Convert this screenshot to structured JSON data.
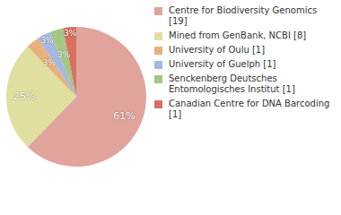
{
  "chart_data": {
    "type": "pie",
    "categories": [
      "Centre for Biodiversity Genomics [19]",
      "Mined from GenBank, NCBI [8]",
      "University of Oulu [1]",
      "University of Guelph [1]",
      "Senckenberg Deutsches Entomologisches Institut [1]",
      "Canadian Centre for DNA Barcoding [1]"
    ],
    "values": [
      61,
      25,
      3,
      3,
      3,
      3
    ],
    "value_labels": [
      "61%",
      "25%",
      "3%",
      "3%",
      "3%",
      "3%"
    ],
    "colors": [
      "#e0a49c",
      "#dfe0a0",
      "#e8b07c",
      "#a4b8e0",
      "#a4c884",
      "#d87060"
    ],
    "data_labels": true,
    "legend": "upper right"
  }
}
